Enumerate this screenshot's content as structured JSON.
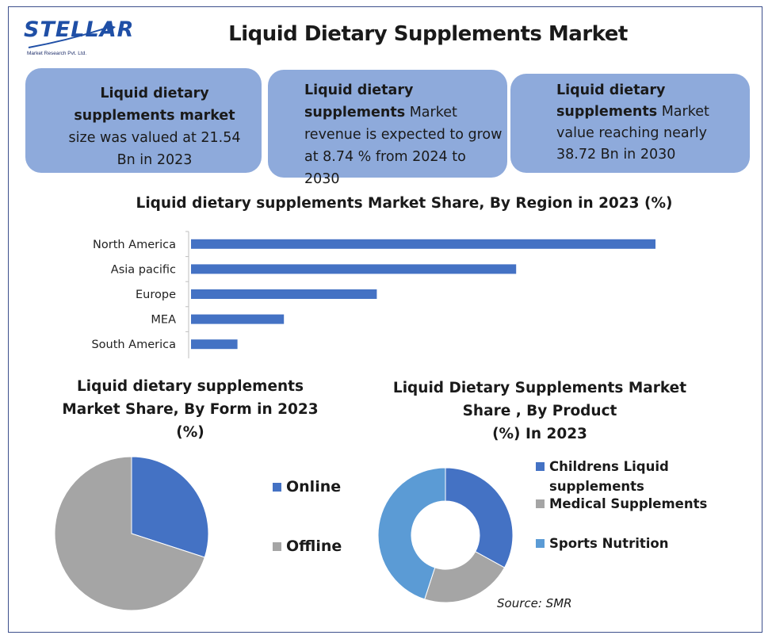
{
  "logo": {
    "word": "STELLAR",
    "sub": "Market Research Pvt. Ltd."
  },
  "title": "Liquid Dietary Supplements Market",
  "cards": {
    "card1": {
      "bold": "Liquid dietary supplements market",
      "text": " size was valued at 21.54 Bn in 2023"
    },
    "card2": {
      "bold": "Liquid dietary supplements",
      "text": " Market revenue is expected to grow at 8.74 % from 2024 to 2030"
    },
    "card3": {
      "bold": "Liquid dietary supplements",
      "text": " Market value reaching nearly 38.72 Bn in 2030"
    }
  },
  "colors": {
    "blue": "#4472c4",
    "gray": "#a5a5a5",
    "light_blue": "#5b9bd5",
    "card": "#8eaadb"
  },
  "chart_data": [
    {
      "type": "bar",
      "orientation": "horizontal",
      "title": "Liquid dietary supplements Market Share, By Region in 2023 (%)",
      "categories": [
        "North America",
        "Asia pacific",
        "Europe",
        "MEA",
        "South America"
      ],
      "values": [
        40,
        28,
        16,
        8,
        4
      ],
      "xlim": [
        0,
        40
      ]
    },
    {
      "type": "pie",
      "title_lines": [
        "Liquid dietary supplements",
        "Market Share, By Form in 2023",
        "(%)"
      ],
      "labels": [
        "Online",
        "Offline"
      ],
      "values": [
        30,
        70
      ]
    },
    {
      "type": "pie",
      "variant": "donut",
      "title_lines": [
        "Liquid Dietary Supplements Market",
        "Share , By Product",
        "(%) In 2023"
      ],
      "labels": [
        "Childrens Liquid supplements",
        "Medical Supplements",
        "Sports Nutrition"
      ],
      "legend_lines": [
        [
          "Childrens Liquid",
          "supplements"
        ],
        [
          "Medical Supplements"
        ],
        [
          "Sports Nutrition"
        ]
      ],
      "values": [
        33,
        22,
        45
      ]
    }
  ],
  "source": "Source: SMR"
}
